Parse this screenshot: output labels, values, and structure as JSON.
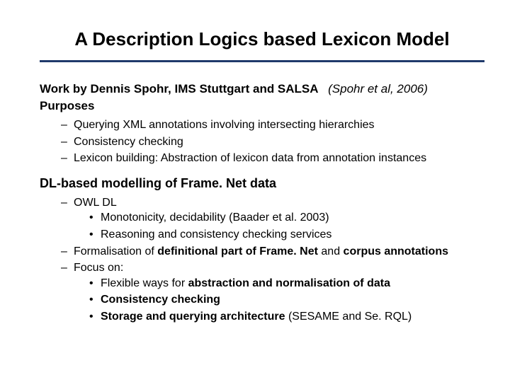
{
  "colors": {
    "background": "#ffffff",
    "text": "#000000",
    "rule": "#1f3a6b"
  },
  "typography": {
    "title_fontsize": 26,
    "body_fontsize": 16,
    "intro_fontsize": 17,
    "section_fontsize": 18,
    "font_family": "Arial"
  },
  "title": "A Description Logics based Lexicon Model",
  "intro": {
    "work_by_prefix": "Work by Dennis Spohr, IMS Stuttgart and SALSA",
    "citation": "(Spohr et al, 2006)",
    "purposes_label": "Purposes"
  },
  "purposes": {
    "items": [
      "Querying XML annotations involving intersecting hierarchies",
      "Consistency checking",
      "Lexicon building: Abstraction of lexicon data from annotation instances"
    ]
  },
  "section2": {
    "heading": "DL-based modelling of Frame. Net data",
    "owl_label": "OWL DL",
    "owl_sub": [
      "Monotonicity, decidability (Baader et al. 2003)",
      "Reasoning and consistency checking services"
    ],
    "formalisation_pre": "Formalisation of ",
    "formalisation_bold1": "definitional part of Frame. Net",
    "formalisation_mid": " and ",
    "formalisation_bold2": "corpus annotations",
    "focus_label": "Focus on:",
    "focus_items": {
      "a_pre": "Flexible ways for ",
      "a_bold": "abstraction and normalisation of data",
      "b": "Consistency checking",
      "c_bold": "Storage and querying architecture",
      "c_tail": "  (SESAME and Se. RQL)"
    }
  }
}
